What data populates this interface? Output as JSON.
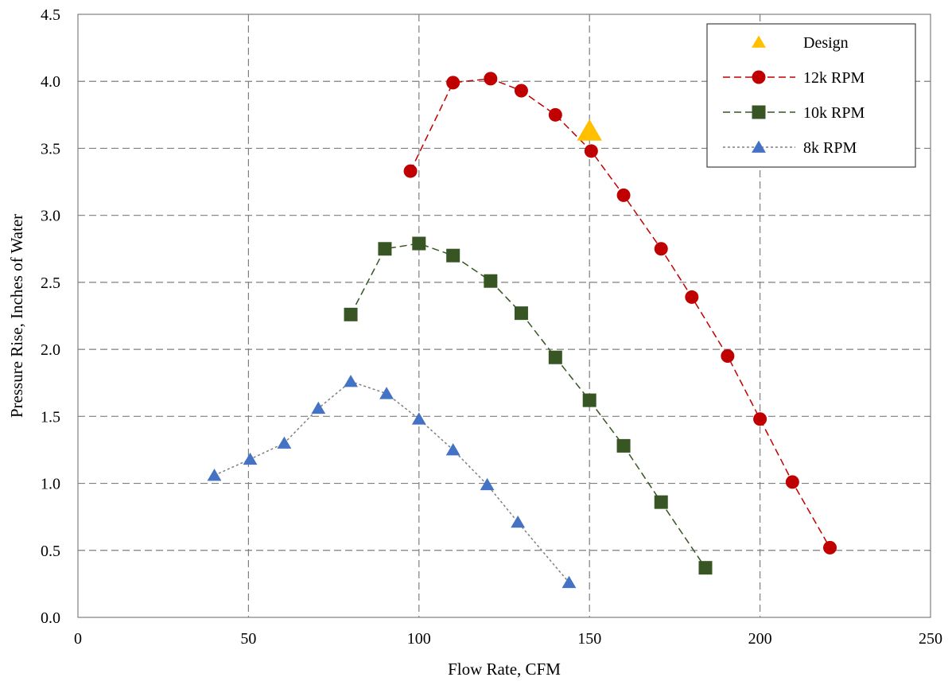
{
  "chart_data": {
    "type": "scatter",
    "xlabel": "Flow Rate, CFM",
    "ylabel": "Pressure Rise, Inches of Water",
    "xlim": [
      0,
      250
    ],
    "ylim": [
      0,
      4.5
    ],
    "x_ticks": [
      0,
      50,
      100,
      150,
      200,
      250
    ],
    "y_ticks": [
      0.0,
      0.5,
      1.0,
      1.5,
      2.0,
      2.5,
      3.0,
      3.5,
      4.0,
      4.5
    ],
    "x_tick_labels": [
      "0",
      "50",
      "100",
      "150",
      "200",
      "250"
    ],
    "y_tick_labels": [
      "0.0",
      "0.5",
      "1.0",
      "1.5",
      "2.0",
      "2.5",
      "3.0",
      "3.5",
      "4.0",
      "4.5"
    ],
    "grid": "dashed, major x and y",
    "legend_position": "top-right",
    "series": [
      {
        "name": "Design",
        "color": "#FFC000",
        "marker": "triangle",
        "line": "none",
        "x": [
          150
        ],
        "y": [
          3.63
        ]
      },
      {
        "name": "12k RPM",
        "color": "#C00000",
        "marker": "circle",
        "line": "dashed",
        "x": [
          97.5,
          110,
          121,
          130,
          140,
          150.5,
          160,
          171,
          180,
          190.5,
          200,
          209.5,
          220.5
        ],
        "y": [
          3.33,
          3.99,
          4.02,
          3.93,
          3.75,
          3.48,
          3.15,
          2.75,
          2.39,
          1.95,
          1.48,
          1.01,
          0.52
        ]
      },
      {
        "name": "10k RPM",
        "color": "#375623",
        "marker": "square",
        "line": "dashed",
        "x": [
          80,
          90,
          100,
          110,
          121,
          130,
          140,
          150,
          160,
          171,
          184
        ],
        "y": [
          2.26,
          2.75,
          2.79,
          2.7,
          2.51,
          2.27,
          1.94,
          1.62,
          1.28,
          0.86,
          0.37
        ]
      },
      {
        "name": "8k RPM",
        "color": "#4472C4",
        "marker": "triangle",
        "line": "dotted",
        "x": [
          40,
          50.5,
          60.5,
          70.5,
          80,
          90.5,
          100,
          110,
          120,
          129,
          144
        ],
        "y": [
          1.06,
          1.18,
          1.3,
          1.56,
          1.76,
          1.67,
          1.48,
          1.25,
          0.99,
          0.71,
          0.26
        ]
      }
    ]
  }
}
